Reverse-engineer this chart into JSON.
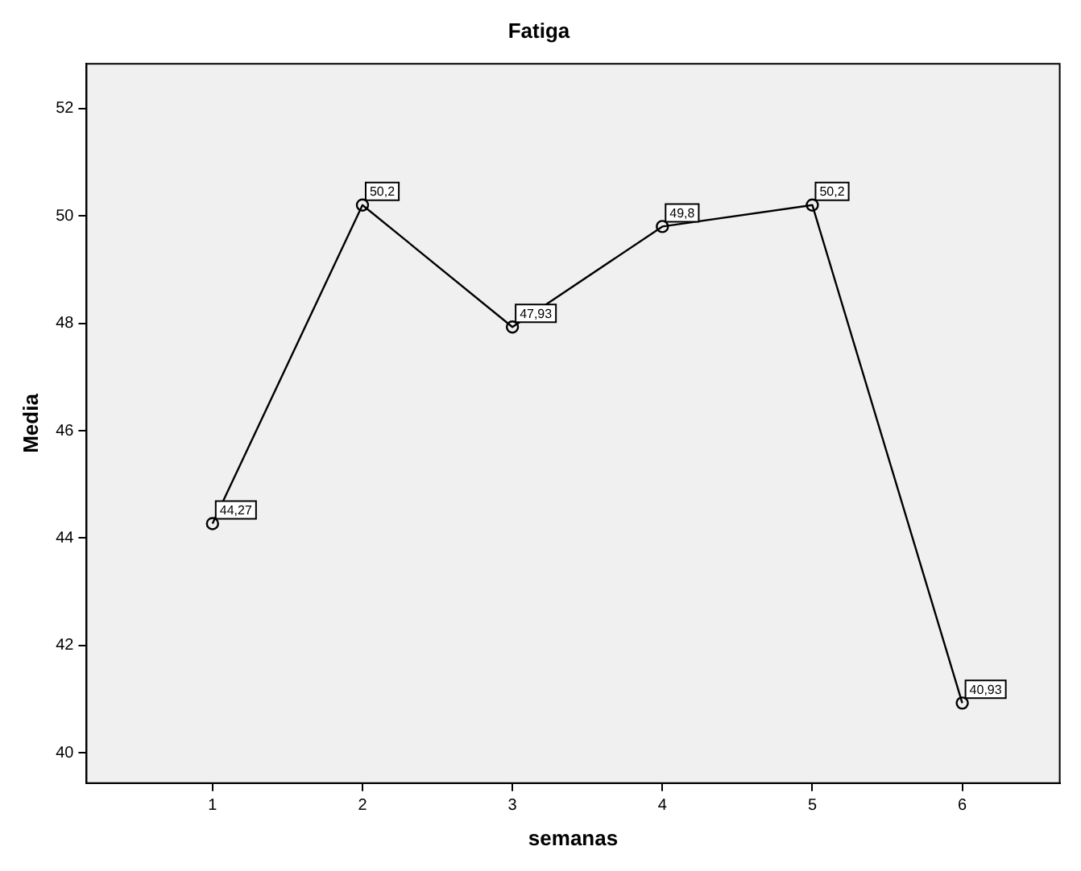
{
  "chart_data": {
    "type": "line",
    "title": "Fatiga",
    "xlabel": "semanas",
    "ylabel": "Media",
    "x": [
      1,
      2,
      3,
      4,
      5,
      6
    ],
    "series": [
      {
        "color": "#000000",
        "values": [
          44.27,
          50.2,
          47.93,
          49.8,
          50.2,
          40.93
        ],
        "value_labels": [
          "44,27",
          "50,2",
          "47,93",
          "49,8",
          "50,2",
          "40,93"
        ]
      }
    ],
    "xlim": [
      0.16,
      6.65
    ],
    "xticks": [
      1,
      2,
      3,
      4,
      5,
      6
    ],
    "ylim": [
      39.44,
      52.83
    ],
    "yticks": [
      40,
      42,
      44,
      46,
      48,
      50,
      52
    ],
    "marker": "circle",
    "line_style": "solid",
    "grid": false,
    "legend": false
  }
}
